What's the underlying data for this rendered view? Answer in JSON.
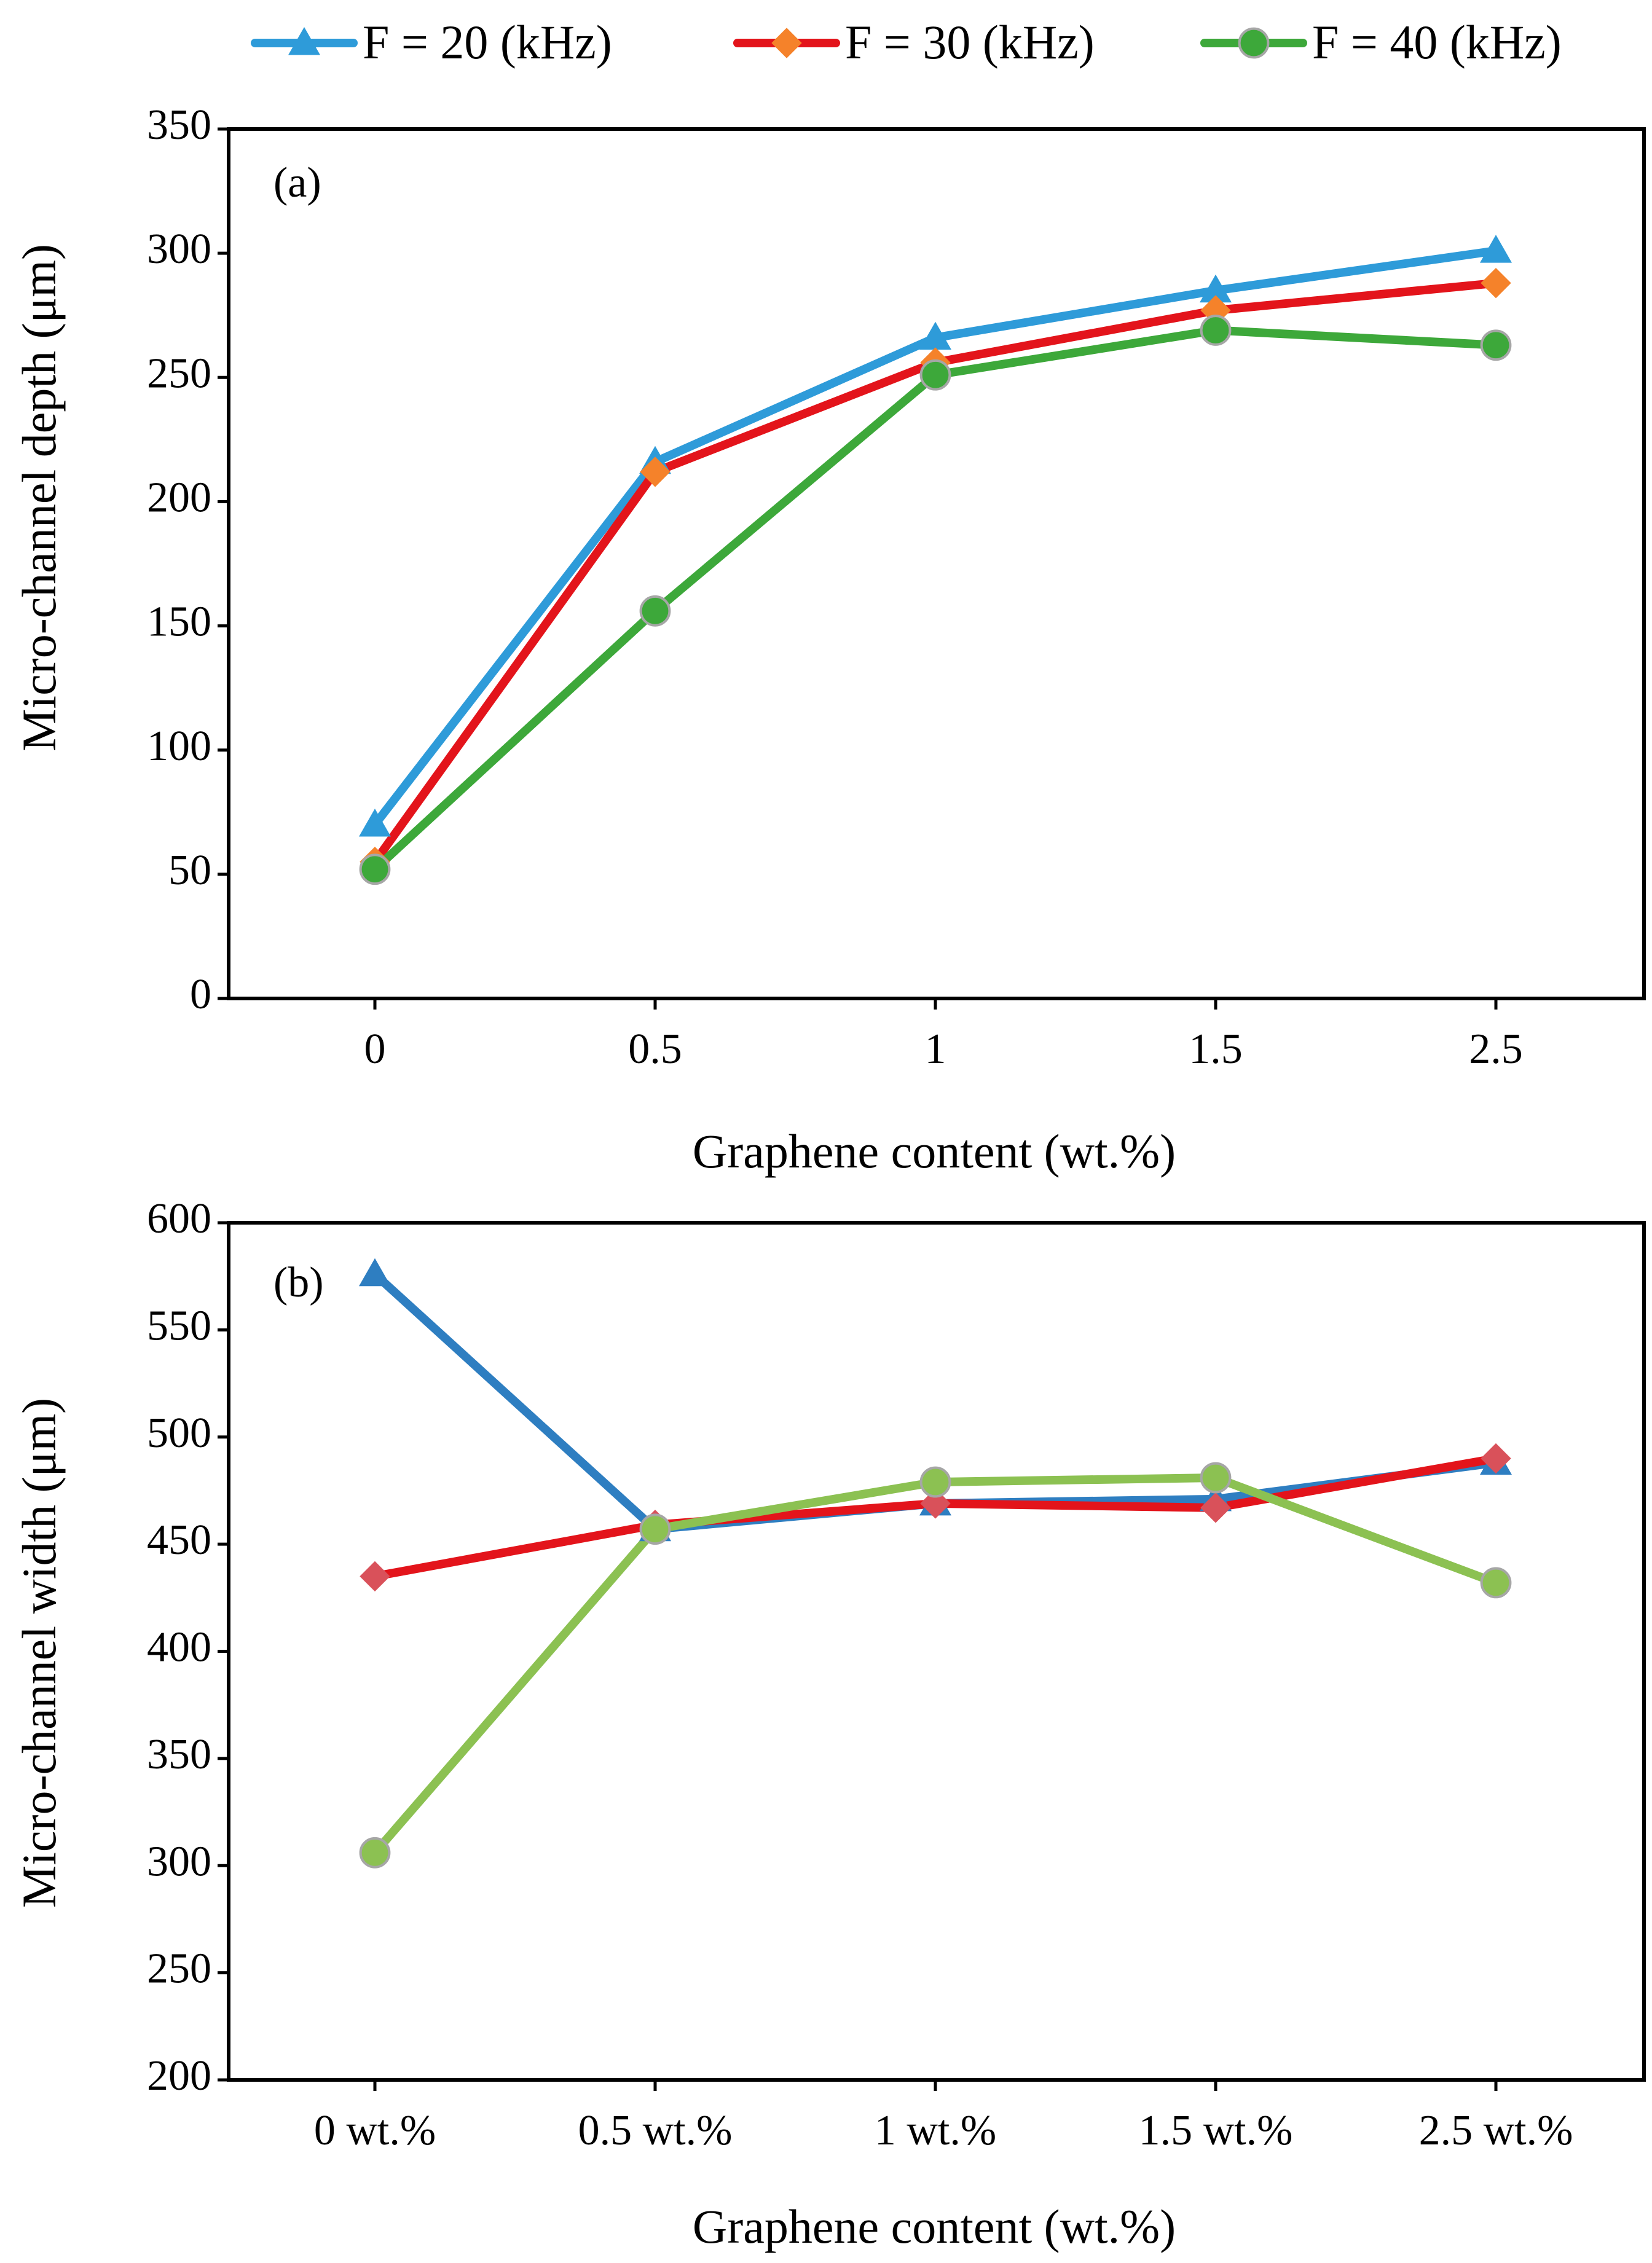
{
  "legend": {
    "entries": [
      {
        "label": "F = 20 (kHz)",
        "color": "#2E9BD9",
        "marker": "triangle",
        "marker_color": "#2E9BD9"
      },
      {
        "label": "F = 30 (kHz)",
        "color": "#E3141B",
        "marker": "diamond",
        "marker_color": "#F5822A"
      },
      {
        "label": "F = 40 (kHz)",
        "color": "#3DA83A",
        "marker": "circle",
        "marker_color": "#3DA83A"
      }
    ]
  },
  "chart_data": [
    {
      "type": "line",
      "panel_label": "(a)",
      "xlabel": "Graphene content  (wt.%)",
      "ylabel": "Micro-channel  depth (μm)",
      "categories": [
        "0",
        "0.5",
        "1",
        "1.5",
        "2.5"
      ],
      "ylim": [
        0,
        350
      ],
      "yticks": [
        0,
        50,
        100,
        150,
        200,
        250,
        300,
        350
      ],
      "ytick_labels": [
        "0",
        "50",
        "100",
        "150",
        "200",
        "250",
        "300",
        "350"
      ],
      "series": [
        {
          "name": "F = 20 (kHz)",
          "color": "#2E9BD9",
          "marker": "triangle",
          "marker_color": "#2E9BD9",
          "values": [
            70,
            216,
            266,
            285,
            301
          ]
        },
        {
          "name": "F = 30 (kHz)",
          "color": "#E3141B",
          "marker": "diamond",
          "marker_color": "#F5822A",
          "values": [
            55,
            212,
            256,
            277,
            288
          ]
        },
        {
          "name": "F = 40 (kHz)",
          "color": "#3DA83A",
          "marker": "circle",
          "marker_color": "#3DA83A",
          "values": [
            52,
            156,
            251,
            269,
            263
          ]
        }
      ]
    },
    {
      "type": "line",
      "panel_label": "(b)",
      "xlabel": "Graphene content  (wt.%)",
      "ylabel": "Micro-channel  width (μm)",
      "categories": [
        "0 wt.%",
        "0.5 wt.%",
        "1 wt.%",
        "1.5 wt.%",
        "2.5 wt.%"
      ],
      "ylim": [
        200,
        600
      ],
      "yticks": [
        200,
        250,
        300,
        350,
        400,
        450,
        500,
        550,
        600
      ],
      "ytick_labels": [
        "200",
        "250",
        "300",
        "350",
        "400",
        "450",
        "500",
        "550",
        "600"
      ],
      "series": [
        {
          "name": "F = 20 (kHz)",
          "color": "#2E7EC1",
          "marker": "triangle",
          "marker_color": "#2E7EC1",
          "values": [
            576,
            457,
            469,
            471,
            488
          ]
        },
        {
          "name": "F = 30 (kHz)",
          "color": "#E3141B",
          "marker": "diamond",
          "marker_color": "#D9515A",
          "values": [
            435,
            459,
            469,
            467,
            490
          ]
        },
        {
          "name": "F = 40 (kHz)",
          "color": "#8CC152",
          "marker": "circle",
          "marker_color": "#8CC152",
          "values": [
            306,
            457,
            479,
            481,
            432
          ]
        }
      ]
    }
  ]
}
